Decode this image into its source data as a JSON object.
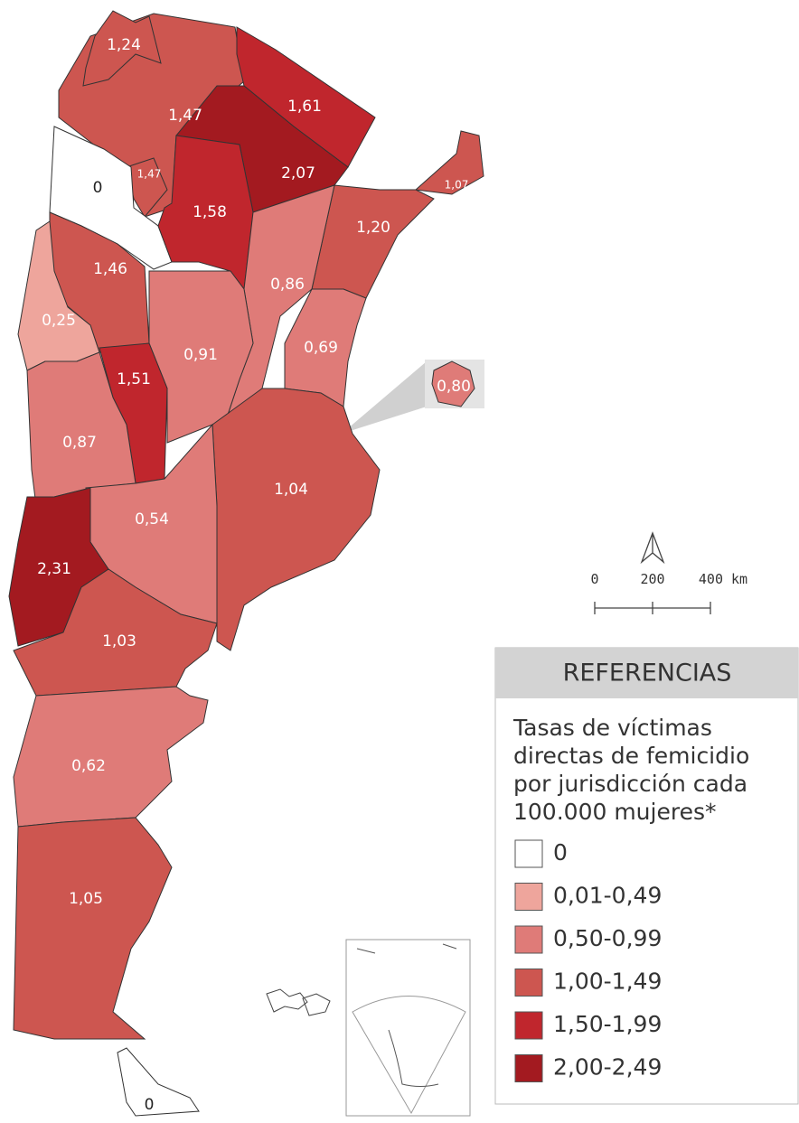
{
  "map": {
    "regions": [
      {
        "label": "1,47",
        "class": 3
      },
      {
        "label": "1,24",
        "class": 3
      },
      {
        "label": "1,61",
        "class": 4
      },
      {
        "label": "2,07",
        "class": 5
      },
      {
        "label": "1,07",
        "class": 3
      },
      {
        "label": "1,20",
        "class": 3
      },
      {
        "label": "1,47",
        "class": 3
      },
      {
        "label": "0",
        "class": 0
      },
      {
        "label": "1,58",
        "class": 4
      },
      {
        "label": "0,86",
        "class": 2
      },
      {
        "label": "0,69",
        "class": 2
      },
      {
        "label": "1,46",
        "class": 3
      },
      {
        "label": "0,25",
        "class": 1
      },
      {
        "label": "0,91",
        "class": 2
      },
      {
        "label": "1,51",
        "class": 4
      },
      {
        "label": "0,87",
        "class": 2
      },
      {
        "label": "1,04",
        "class": 3
      },
      {
        "label": "0,54",
        "class": 2
      },
      {
        "label": "2,31",
        "class": 5
      },
      {
        "label": "1,03",
        "class": 3
      },
      {
        "label": "0,62",
        "class": 2
      },
      {
        "label": "1,05",
        "class": 3
      },
      {
        "label": "0",
        "class": 0
      },
      {
        "label": "0,80",
        "class": 2
      }
    ],
    "scale": [
      "0",
      "200",
      "400 km"
    ],
    "legend": {
      "title": "REFERENCIAS",
      "subtitle": [
        "Tasas de víctimas",
        "directas de femicidio",
        "por jurisdicción cada",
        "100.000 mujeres*"
      ],
      "items": [
        {
          "label": "0",
          "color": "#ffffff"
        },
        {
          "label": "0,01-0,49",
          "color": "#eea59c"
        },
        {
          "label": "0,50-0,99",
          "color": "#df7b78"
        },
        {
          "label": "1,00-1,49",
          "color": "#cd5650"
        },
        {
          "label": "1,50-1,99",
          "color": "#c0262d"
        },
        {
          "label": "2,00-2,49",
          "color": "#a31a20"
        }
      ]
    }
  }
}
